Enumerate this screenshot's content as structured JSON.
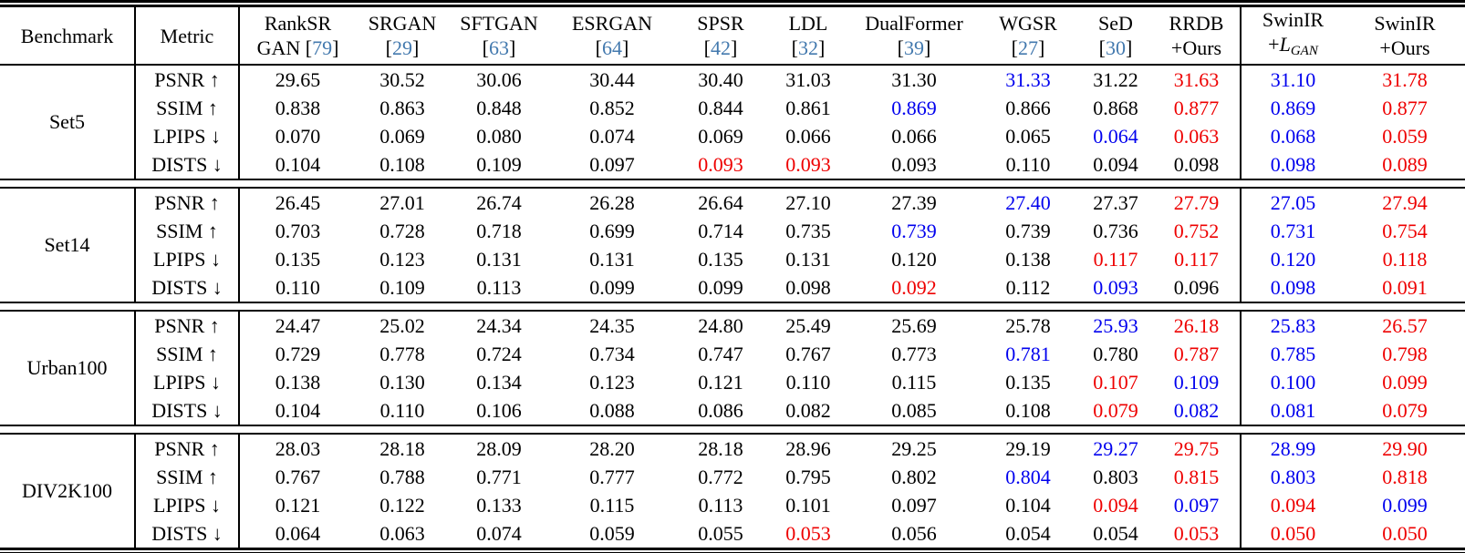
{
  "colors": {
    "best": "#ee0000",
    "second_best": "#0000ee",
    "citation": "#4379ae"
  },
  "header": {
    "benchmark": "Benchmark",
    "metric": "Metric",
    "methods": [
      {
        "top": "RankSR",
        "pre": "GAN [",
        "cite": "79",
        "post": "]"
      },
      {
        "top": "SRGAN",
        "pre": "[",
        "cite": "29",
        "post": "]"
      },
      {
        "top": "SFTGAN",
        "pre": "[",
        "cite": "63",
        "post": "]"
      },
      {
        "top": "ESRGAN",
        "pre": "[",
        "cite": "64",
        "post": "]"
      },
      {
        "top": "SPSR",
        "pre": "[",
        "cite": "42",
        "post": "]"
      },
      {
        "top": "LDL",
        "pre": "[",
        "cite": "32",
        "post": "]"
      },
      {
        "top": "DualFormer",
        "pre": "[",
        "cite": "39",
        "post": "]"
      },
      {
        "top": "WGSR",
        "pre": "[",
        "cite": "27",
        "post": "]"
      },
      {
        "top": "SeD",
        "pre": "[",
        "cite": "30",
        "post": "]"
      },
      {
        "top": "RRDB",
        "pre": "+Ours"
      },
      {
        "top": "SwinIR",
        "pre": "+",
        "math": "L",
        "sub": "GAN"
      },
      {
        "top": "SwinIR",
        "pre": "+Ours"
      }
    ]
  },
  "groups": [
    {
      "benchmark": "Set5",
      "rows": [
        {
          "metric": "PSNR ↑",
          "values": [
            "29.65",
            "30.52",
            "30.06",
            "30.44",
            "30.40",
            "31.03",
            "31.30",
            "31.33",
            "31.22",
            "31.63",
            "31.10",
            "31.78"
          ],
          "colors": "kkkkkkkbkrbr"
        },
        {
          "metric": "SSIM ↑",
          "values": [
            "0.838",
            "0.863",
            "0.848",
            "0.852",
            "0.844",
            "0.861",
            "0.869",
            "0.866",
            "0.868",
            "0.877",
            "0.869",
            "0.877"
          ],
          "colors": "kkkkkkbkkrbr"
        },
        {
          "metric": "LPIPS ↓",
          "values": [
            "0.070",
            "0.069",
            "0.080",
            "0.074",
            "0.069",
            "0.066",
            "0.066",
            "0.065",
            "0.064",
            "0.063",
            "0.068",
            "0.059"
          ],
          "colors": "kkkkkkkkbrbr"
        },
        {
          "metric": "DISTS ↓",
          "values": [
            "0.104",
            "0.108",
            "0.109",
            "0.097",
            "0.093",
            "0.093",
            "0.093",
            "0.110",
            "0.094",
            "0.098",
            "0.098",
            "0.089"
          ],
          "colors": "kkkkrrkkkkbr"
        }
      ]
    },
    {
      "benchmark": "Set14",
      "rows": [
        {
          "metric": "PSNR ↑",
          "values": [
            "26.45",
            "27.01",
            "26.74",
            "26.28",
            "26.64",
            "27.10",
            "27.39",
            "27.40",
            "27.37",
            "27.79",
            "27.05",
            "27.94"
          ],
          "colors": "kkkkkkkbkrbr"
        },
        {
          "metric": "SSIM ↑",
          "values": [
            "0.703",
            "0.728",
            "0.718",
            "0.699",
            "0.714",
            "0.735",
            "0.739",
            "0.739",
            "0.736",
            "0.752",
            "0.731",
            "0.754"
          ],
          "colors": "kkkkkkbkkrbr"
        },
        {
          "metric": "LPIPS ↓",
          "values": [
            "0.135",
            "0.123",
            "0.131",
            "0.131",
            "0.135",
            "0.131",
            "0.120",
            "0.138",
            "0.117",
            "0.117",
            "0.120",
            "0.118"
          ],
          "colors": "kkkkkkkkrrbr"
        },
        {
          "metric": "DISTS ↓",
          "values": [
            "0.110",
            "0.109",
            "0.113",
            "0.099",
            "0.099",
            "0.098",
            "0.092",
            "0.112",
            "0.093",
            "0.096",
            "0.098",
            "0.091"
          ],
          "colors": "kkkkkkrkbkbr"
        }
      ]
    },
    {
      "benchmark": "Urban100",
      "rows": [
        {
          "metric": "PSNR ↑",
          "values": [
            "24.47",
            "25.02",
            "24.34",
            "24.35",
            "24.80",
            "25.49",
            "25.69",
            "25.78",
            "25.93",
            "26.18",
            "25.83",
            "26.57"
          ],
          "colors": "kkkkkkkkbrbr"
        },
        {
          "metric": "SSIM ↑",
          "values": [
            "0.729",
            "0.778",
            "0.724",
            "0.734",
            "0.747",
            "0.767",
            "0.773",
            "0.781",
            "0.780",
            "0.787",
            "0.785",
            "0.798"
          ],
          "colors": "kkkkkkkbkrbr"
        },
        {
          "metric": "LPIPS ↓",
          "values": [
            "0.138",
            "0.130",
            "0.134",
            "0.123",
            "0.121",
            "0.110",
            "0.115",
            "0.135",
            "0.107",
            "0.109",
            "0.100",
            "0.099"
          ],
          "colors": "kkkkkkkkrbbr"
        },
        {
          "metric": "DISTS ↓",
          "values": [
            "0.104",
            "0.110",
            "0.106",
            "0.088",
            "0.086",
            "0.082",
            "0.085",
            "0.108",
            "0.079",
            "0.082",
            "0.081",
            "0.079"
          ],
          "colors": "kkkkkkkkrbbr"
        }
      ]
    },
    {
      "benchmark": "DIV2K100",
      "rows": [
        {
          "metric": "PSNR ↑",
          "values": [
            "28.03",
            "28.18",
            "28.09",
            "28.20",
            "28.18",
            "28.96",
            "29.25",
            "29.19",
            "29.27",
            "29.75",
            "28.99",
            "29.90"
          ],
          "colors": "kkkkkkkkbrbr"
        },
        {
          "metric": "SSIM ↑",
          "values": [
            "0.767",
            "0.788",
            "0.771",
            "0.777",
            "0.772",
            "0.795",
            "0.802",
            "0.804",
            "0.803",
            "0.815",
            "0.803",
            "0.818"
          ],
          "colors": "kkkkkkkbkrbr"
        },
        {
          "metric": "LPIPS ↓",
          "values": [
            "0.121",
            "0.122",
            "0.133",
            "0.115",
            "0.113",
            "0.101",
            "0.097",
            "0.104",
            "0.094",
            "0.097",
            "0.094",
            "0.099"
          ],
          "colors": "kkkkkkkkrbrb"
        },
        {
          "metric": "DISTS ↓",
          "values": [
            "0.064",
            "0.063",
            "0.074",
            "0.059",
            "0.055",
            "0.053",
            "0.056",
            "0.054",
            "0.054",
            "0.053",
            "0.050",
            "0.050"
          ],
          "colors": "kkkkkrkkkrrr"
        }
      ]
    }
  ]
}
